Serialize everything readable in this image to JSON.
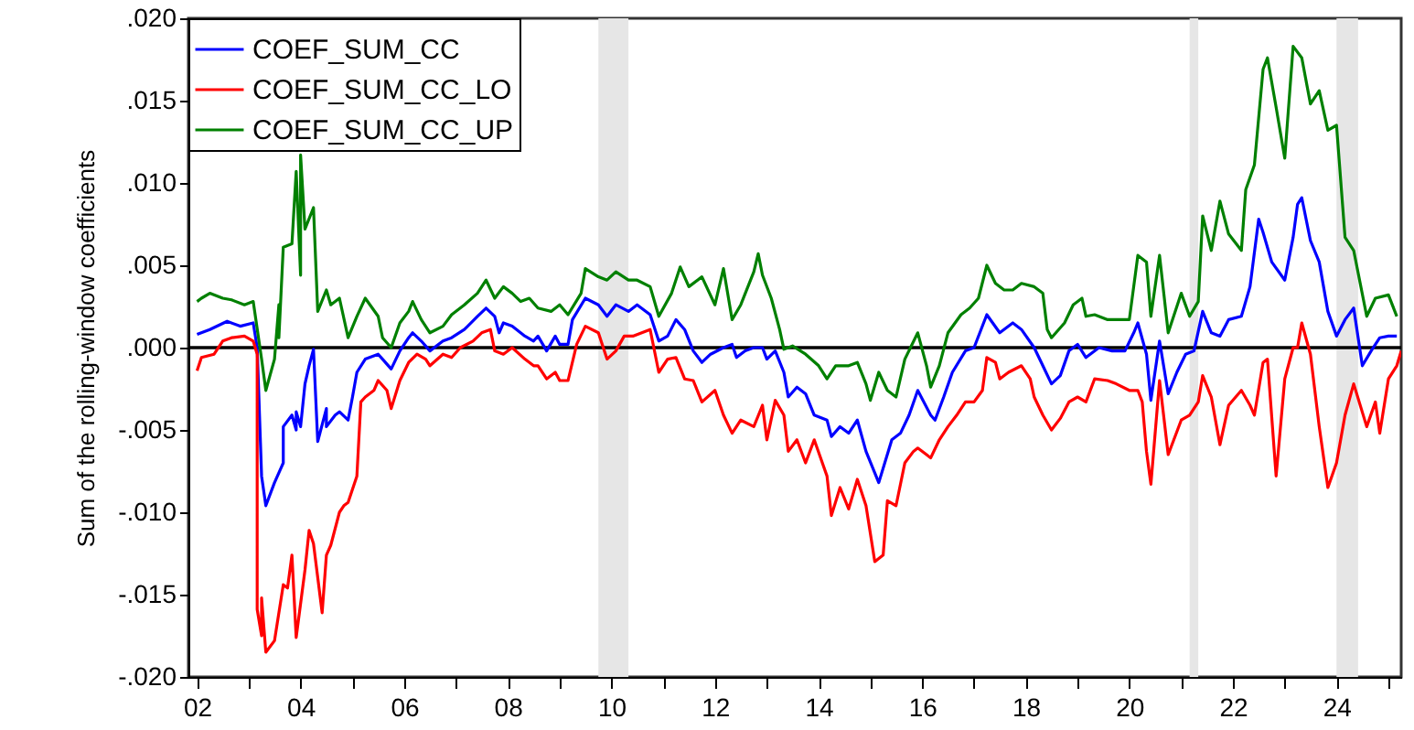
{
  "chart_data": {
    "type": "line",
    "ylabel": "Sum of the rolling-window coefficients",
    "xlim": [
      "2001-11",
      "2025-04"
    ],
    "xticks": [
      {
        "value": "2002-01",
        "label": "02"
      },
      {
        "value": "2003-01",
        "label": null
      },
      {
        "value": "2004-01",
        "label": "04"
      },
      {
        "value": "2005-01",
        "label": null
      },
      {
        "value": "2006-01",
        "label": "06"
      },
      {
        "value": "2007-01",
        "label": null
      },
      {
        "value": "2008-01",
        "label": "08"
      },
      {
        "value": "2009-01",
        "label": null
      },
      {
        "value": "2010-01",
        "label": "10"
      },
      {
        "value": "2011-01",
        "label": null
      },
      {
        "value": "2012-01",
        "label": "12"
      },
      {
        "value": "2013-01",
        "label": null
      },
      {
        "value": "2014-01",
        "label": "14"
      },
      {
        "value": "2015-01",
        "label": null
      },
      {
        "value": "2016-01",
        "label": "16"
      },
      {
        "value": "2017-01",
        "label": null
      },
      {
        "value": "2018-01",
        "label": "18"
      },
      {
        "value": "2019-01",
        "label": null
      },
      {
        "value": "2020-01",
        "label": "20"
      },
      {
        "value": "2021-01",
        "label": null
      },
      {
        "value": "2022-01",
        "label": "22"
      },
      {
        "value": "2023-01",
        "label": null
      },
      {
        "value": "2024-01",
        "label": "24"
      },
      {
        "value": "2025-01",
        "label": null
      }
    ],
    "ylim": [
      -0.02,
      0.02
    ],
    "yticks": [
      {
        "value": -0.02,
        "label": "-.020"
      },
      {
        "value": -0.015,
        "label": "-.015"
      },
      {
        "value": -0.01,
        "label": "-.010"
      },
      {
        "value": -0.005,
        "label": "-.005"
      },
      {
        "value": 0,
        "label": ".000"
      },
      {
        "value": 0.005,
        "label": ".005"
      },
      {
        "value": 0.01,
        "label": ".010"
      },
      {
        "value": 0.015,
        "label": ".015"
      },
      {
        "value": 0.02,
        "label": ".020"
      }
    ],
    "grid": false,
    "legend": "top left",
    "ref_lines": [
      {
        "axis": "y",
        "value": 0,
        "color": "#000000"
      }
    ],
    "bands": [
      {
        "axis": "x",
        "from": "2009-10",
        "to": "2010-05",
        "color": "#e6e6e6"
      },
      {
        "axis": "x",
        "from": "2021-03",
        "to": "2021-05",
        "color": "#e6e6e6"
      },
      {
        "axis": "x",
        "from": "2024-01",
        "to": "2024-06",
        "color": "#e6e6e6"
      }
    ],
    "series": [
      {
        "name": "COEF_SUM_CC",
        "color": "#0000ff",
        "x": [
          "2002-01",
          "2002-04",
          "2002-08",
          "2002-11",
          "2003-02",
          "2003-03",
          "2003-04",
          "2003-05",
          "2003-07",
          "2003-09",
          "2003-09",
          "2003-11",
          "2003-12",
          "2003-12",
          "2004-01",
          "2004-02",
          "2004-03",
          "2004-04",
          "2004-05",
          "2004-07",
          "2004-07",
          "2004-09",
          "2004-10",
          "2004-12",
          "2005-01",
          "2005-02",
          "2005-04",
          "2005-07",
          "2005-08",
          "2005-10",
          "2005-12",
          "2006-02",
          "2006-03",
          "2006-05",
          "2006-07",
          "2006-10",
          "2006-12",
          "2007-03",
          "2007-06",
          "2007-08",
          "2007-10",
          "2007-11",
          "2007-12",
          "2008-02",
          "2008-05",
          "2008-07",
          "2008-08",
          "2008-10",
          "2008-12",
          "2009-01",
          "2009-03",
          "2009-04",
          "2009-07",
          "2009-10",
          "2009-12",
          "2010-02",
          "2010-05",
          "2010-07",
          "2010-10",
          "2010-12",
          "2011-02",
          "2011-04",
          "2011-06",
          "2011-08",
          "2011-10",
          "2011-12",
          "2012-03",
          "2012-05",
          "2012-06",
          "2012-08",
          "2012-10",
          "2012-12",
          "2013-01",
          "2013-03",
          "2013-05",
          "2013-06",
          "2013-08",
          "2013-10",
          "2013-12",
          "2014-03",
          "2014-04",
          "2014-06",
          "2014-08",
          "2014-10",
          "2014-12",
          "2015-03",
          "2015-06",
          "2015-08",
          "2015-10",
          "2015-12",
          "2016-03",
          "2016-04",
          "2016-06",
          "2016-08",
          "2016-11",
          "2017-01",
          "2017-04",
          "2017-07",
          "2017-10",
          "2017-12",
          "2018-03",
          "2018-05",
          "2018-07",
          "2018-09",
          "2018-11",
          "2019-01",
          "2019-03",
          "2019-06",
          "2019-09",
          "2019-12",
          "2020-02",
          "2020-03",
          "2020-05",
          "2020-06",
          "2020-08",
          "2020-10",
          "2020-12",
          "2021-02",
          "2021-04",
          "2021-06",
          "2021-08",
          "2021-10",
          "2021-12",
          "2022-03",
          "2022-05",
          "2022-07",
          "2022-08",
          "2022-10",
          "2023-01",
          "2023-03",
          "2023-04",
          "2023-05",
          "2023-07",
          "2023-09",
          "2023-11",
          "2024-01",
          "2024-03",
          "2024-05",
          "2024-07",
          "2024-09",
          "2024-11",
          "2025-01",
          "2025-03"
        ],
        "values": [
          0.0008,
          0.0011,
          0.0016,
          0.0013,
          0.0015,
          0,
          -0.0078,
          -0.0096,
          -0.0082,
          -0.007,
          -0.0048,
          -0.0041,
          -0.005,
          -0.0039,
          -0.0048,
          -0.0022,
          -0.0011,
          -0.0001,
          -0.0057,
          -0.0037,
          -0.0048,
          -0.0041,
          -0.0039,
          -0.0044,
          -0.003,
          -0.0015,
          -0.0007,
          -0.0004,
          -0.0007,
          -0.0013,
          -0.0002,
          0.0006,
          0.0009,
          0.0004,
          -0.0002,
          0.0004,
          0.0006,
          0.0011,
          0.0019,
          0.0024,
          0.0019,
          0.0009,
          0.0015,
          0.0013,
          0.0007,
          0.0004,
          0.0007,
          -0.0002,
          0.0007,
          0.0002,
          0.0002,
          0.0017,
          0.003,
          0.0026,
          0.0019,
          0.0026,
          0.0022,
          0.0026,
          0.002,
          0.0004,
          0.0007,
          0.0017,
          0.0011,
          -0.0002,
          -0.0009,
          -0.0004,
          0,
          0.0002,
          -0.0006,
          -0.0002,
          0,
          0,
          -0.0007,
          -0.0002,
          -0.0015,
          -0.003,
          -0.0024,
          -0.0028,
          -0.0041,
          -0.0044,
          -0.0054,
          -0.0048,
          -0.0052,
          -0.0044,
          -0.0063,
          -0.0082,
          -0.0056,
          -0.0052,
          -0.0041,
          -0.0026,
          -0.0041,
          -0.0044,
          -0.003,
          -0.0015,
          -0.0002,
          0,
          0.002,
          0.0009,
          0.0015,
          0.0011,
          0,
          -0.0011,
          -0.0022,
          -0.0017,
          -0.0002,
          0.0002,
          -0.0006,
          0,
          -0.0002,
          -0.0002,
          0.0009,
          0.0015,
          -0.0004,
          -0.0032,
          0.0004,
          -0.0028,
          -0.0015,
          -0.0004,
          -0.0002,
          0.0022,
          0.0009,
          0.0007,
          0.0017,
          0.0019,
          0.0037,
          0.0078,
          0.007,
          0.0052,
          0.0041,
          0.0067,
          0.0087,
          0.0091,
          0.0065,
          0.0052,
          0.0022,
          0.0007,
          0.0017,
          0.0024,
          -0.0011,
          -0.0002,
          0.0006,
          0.0007,
          0.0007
        ]
      },
      {
        "name": "COEF_SUM_CC_LO",
        "color": "#ff0000",
        "x": [
          "2002-01",
          "2002-02",
          "2002-05",
          "2002-07",
          "2002-09",
          "2002-12",
          "2003-02",
          "2003-03",
          "2003-03",
          "2003-04",
          "2003-04",
          "2003-05",
          "2003-07",
          "2003-09",
          "2003-10",
          "2003-11",
          "2003-12",
          "2004-02",
          "2004-03",
          "2004-04",
          "2004-06",
          "2004-07",
          "2004-08",
          "2004-10",
          "2004-11",
          "2004-12",
          "2005-02",
          "2005-03",
          "2005-04",
          "2005-06",
          "2005-07",
          "2005-09",
          "2005-10",
          "2005-12",
          "2006-02",
          "2006-04",
          "2006-06",
          "2006-07",
          "2006-10",
          "2006-12",
          "2007-02",
          "2007-05",
          "2007-07",
          "2007-09",
          "2007-10",
          "2007-12",
          "2008-02",
          "2008-05",
          "2008-07",
          "2008-08",
          "2008-10",
          "2008-12",
          "2009-01",
          "2009-03",
          "2009-05",
          "2009-07",
          "2009-10",
          "2009-12",
          "2010-02",
          "2010-04",
          "2010-06",
          "2010-10",
          "2010-12",
          "2011-02",
          "2011-04",
          "2011-06",
          "2011-08",
          "2011-10",
          "2012-01",
          "2012-03",
          "2012-05",
          "2012-07",
          "2012-10",
          "2012-12",
          "2013-01",
          "2013-03",
          "2013-05",
          "2013-06",
          "2013-08",
          "2013-10",
          "2013-12",
          "2014-03",
          "2014-04",
          "2014-06",
          "2014-08",
          "2014-10",
          "2014-12",
          "2015-02",
          "2015-04",
          "2015-05",
          "2015-07",
          "2015-09",
          "2015-11",
          "2015-12",
          "2016-02",
          "2016-03",
          "2016-05",
          "2016-07",
          "2016-09",
          "2016-11",
          "2017-01",
          "2017-03",
          "2017-04",
          "2017-06",
          "2017-07",
          "2017-09",
          "2017-12",
          "2018-02",
          "2018-03",
          "2018-05",
          "2018-07",
          "2018-09",
          "2018-11",
          "2019-01",
          "2019-03",
          "2019-05",
          "2019-08",
          "2019-10",
          "2020-01",
          "2020-03",
          "2020-04",
          "2020-05",
          "2020-06",
          "2020-08",
          "2020-10",
          "2021-01",
          "2021-03",
          "2021-05",
          "2021-06",
          "2021-08",
          "2021-10",
          "2021-12",
          "2022-03",
          "2022-05",
          "2022-06",
          "2022-08",
          "2022-09",
          "2022-11",
          "2023-01",
          "2023-03",
          "2023-04",
          "2023-05",
          "2023-07",
          "2023-09",
          "2023-11",
          "2024-01",
          "2024-03",
          "2024-05",
          "2024-08",
          "2024-10",
          "2024-11",
          "2025-01",
          "2025-03",
          "2025-04"
        ],
        "values": [
          -0.0014,
          -0.0006,
          -0.0004,
          0.0004,
          0.0006,
          0.0007,
          0.0004,
          -0.0004,
          -0.0159,
          -0.0175,
          -0.0152,
          -0.0185,
          -0.0178,
          -0.0144,
          -0.0146,
          -0.0126,
          -0.0176,
          -0.0135,
          -0.0111,
          -0.0119,
          -0.0161,
          -0.0126,
          -0.012,
          -0.01,
          -0.0096,
          -0.0094,
          -0.0078,
          -0.0033,
          -0.003,
          -0.0026,
          -0.002,
          -0.0026,
          -0.0037,
          -0.002,
          -0.0009,
          -0.0004,
          -0.0007,
          -0.0011,
          -0.0004,
          -0.0006,
          0,
          0.0004,
          0.0009,
          0.0011,
          -0.0002,
          -0.0004,
          0,
          -0.0007,
          -0.0011,
          -0.0011,
          -0.0019,
          -0.0015,
          -0.002,
          -0.002,
          0.0002,
          0.0013,
          0.0009,
          -0.0007,
          -0.0002,
          0.0007,
          0.0007,
          0.0011,
          -0.0015,
          -0.0007,
          -0.0006,
          -0.0019,
          -0.002,
          -0.0033,
          -0.0026,
          -0.0041,
          -0.0052,
          -0.0044,
          -0.0048,
          -0.0035,
          -0.0056,
          -0.0032,
          -0.0041,
          -0.0063,
          -0.0056,
          -0.007,
          -0.0056,
          -0.0078,
          -0.0102,
          -0.0085,
          -0.0098,
          -0.008,
          -0.0096,
          -0.013,
          -0.0126,
          -0.0093,
          -0.0096,
          -0.007,
          -0.0063,
          -0.0061,
          -0.0065,
          -0.0067,
          -0.0056,
          -0.0048,
          -0.0041,
          -0.0033,
          -0.0033,
          -0.0026,
          -0.0006,
          -0.0009,
          -0.0019,
          -0.0015,
          -0.0011,
          -0.0019,
          -0.003,
          -0.0041,
          -0.005,
          -0.0043,
          -0.0033,
          -0.003,
          -0.0033,
          -0.0019,
          -0.002,
          -0.0022,
          -0.0026,
          -0.0026,
          -0.0033,
          -0.0063,
          -0.0083,
          -0.002,
          -0.0065,
          -0.0044,
          -0.0041,
          -0.0033,
          -0.0017,
          -0.003,
          -0.0059,
          -0.0035,
          -0.0026,
          -0.0035,
          -0.0041,
          -0.0009,
          -0.0007,
          -0.0078,
          -0.0019,
          0,
          0,
          0.0015,
          -0.0004,
          -0.0048,
          -0.0085,
          -0.007,
          -0.0041,
          -0.0022,
          -0.0048,
          -0.0033,
          -0.0052,
          -0.0019,
          -0.0011,
          -0.0002
        ]
      },
      {
        "name": "COEF_SUM_CC_UP",
        "color": "#008000",
        "x": [
          "2002-01",
          "2002-02",
          "2002-04",
          "2002-07",
          "2002-09",
          "2002-12",
          "2003-02",
          "2003-04",
          "2003-05",
          "2003-07",
          "2003-08",
          "2003-08",
          "2003-09",
          "2003-11",
          "2003-12",
          "2004-01",
          "2004-01",
          "2004-02",
          "2004-04",
          "2004-05",
          "2004-07",
          "2004-08",
          "2004-10",
          "2004-12",
          "2005-02",
          "2005-04",
          "2005-07",
          "2005-08",
          "2005-10",
          "2005-12",
          "2006-02",
          "2006-03",
          "2006-05",
          "2006-07",
          "2006-10",
          "2006-12",
          "2007-03",
          "2007-06",
          "2007-08",
          "2007-10",
          "2007-12",
          "2008-02",
          "2008-04",
          "2008-06",
          "2008-08",
          "2008-11",
          "2009-01",
          "2009-03",
          "2009-06",
          "2009-07",
          "2009-10",
          "2009-12",
          "2010-02",
          "2010-05",
          "2010-07",
          "2010-10",
          "2010-12",
          "2011-03",
          "2011-05",
          "2011-07",
          "2011-10",
          "2012-01",
          "2012-03",
          "2012-05",
          "2012-07",
          "2012-10",
          "2012-11",
          "2012-12",
          "2013-02",
          "2013-04",
          "2013-05",
          "2013-07",
          "2013-10",
          "2014-01",
          "2014-03",
          "2014-05",
          "2014-08",
          "2014-10",
          "2014-12",
          "2015-01",
          "2015-03",
          "2015-05",
          "2015-07",
          "2015-09",
          "2015-12",
          "2016-02",
          "2016-03",
          "2016-05",
          "2016-07",
          "2016-10",
          "2016-12",
          "2017-02",
          "2017-04",
          "2017-06",
          "2017-08",
          "2017-10",
          "2017-12",
          "2018-03",
          "2018-05",
          "2018-06",
          "2018-07",
          "2018-10",
          "2018-12",
          "2019-02",
          "2019-03",
          "2019-05",
          "2019-08",
          "2019-11",
          "2020-01",
          "2020-03",
          "2020-05",
          "2020-06",
          "2020-08",
          "2020-10",
          "2021-01",
          "2021-03",
          "2021-05",
          "2021-06",
          "2021-08",
          "2021-10",
          "2021-12",
          "2022-03",
          "2022-04",
          "2022-06",
          "2022-08",
          "2022-09",
          "2022-11",
          "2023-01",
          "2023-03",
          "2023-05",
          "2023-07",
          "2023-09",
          "2023-11",
          "2024-01",
          "2024-03",
          "2024-05",
          "2024-08",
          "2024-10",
          "2025-01",
          "2025-03"
        ],
        "values": [
          0.0028,
          0.003,
          0.0033,
          0.003,
          0.0029,
          0.0026,
          0.0028,
          -0.0007,
          -0.0026,
          -0.0007,
          0.0026,
          0.0006,
          0.0061,
          0.0063,
          0.0107,
          0.0044,
          0.0117,
          0.0072,
          0.0085,
          0.0022,
          0.0035,
          0.0026,
          0.003,
          0.0006,
          0.0019,
          0.003,
          0.0019,
          0.0006,
          0,
          0.0015,
          0.0022,
          0.0028,
          0.0017,
          0.0009,
          0.0013,
          0.002,
          0.0026,
          0.0033,
          0.0041,
          0.003,
          0.0037,
          0.0033,
          0.0028,
          0.003,
          0.0024,
          0.0022,
          0.0026,
          0.002,
          0.0033,
          0.0048,
          0.0043,
          0.0041,
          0.0046,
          0.0041,
          0.0041,
          0.0037,
          0.0019,
          0.0033,
          0.0049,
          0.0037,
          0.0043,
          0.0026,
          0.0048,
          0.0017,
          0.0026,
          0.0046,
          0.0057,
          0.0044,
          0.003,
          0.0011,
          -0.0001,
          0.0001,
          -0.0004,
          -0.0011,
          -0.0019,
          -0.0011,
          -0.0011,
          -0.0009,
          -0.0022,
          -0.0032,
          -0.0015,
          -0.0026,
          -0.003,
          -0.0007,
          0.0009,
          -0.0011,
          -0.0024,
          -0.0011,
          0.0009,
          0.002,
          0.0024,
          0.003,
          0.005,
          0.0039,
          0.0035,
          0.0035,
          0.0039,
          0.0037,
          0.0033,
          0.0011,
          0.0006,
          0.0015,
          0.0026,
          0.003,
          0.0019,
          0.002,
          0.0017,
          0.0017,
          0.0017,
          0.0056,
          0.0052,
          0.0019,
          0.0056,
          0.0009,
          0.0033,
          0.0019,
          0.0028,
          0.008,
          0.0059,
          0.0089,
          0.0069,
          0.0059,
          0.0096,
          0.0111,
          0.0169,
          0.0176,
          0.0146,
          0.0115,
          0.0183,
          0.0176,
          0.0148,
          0.0156,
          0.0132,
          0.0135,
          0.0067,
          0.0059,
          0.0019,
          0.003,
          0.0032,
          0.0019
        ]
      }
    ]
  }
}
